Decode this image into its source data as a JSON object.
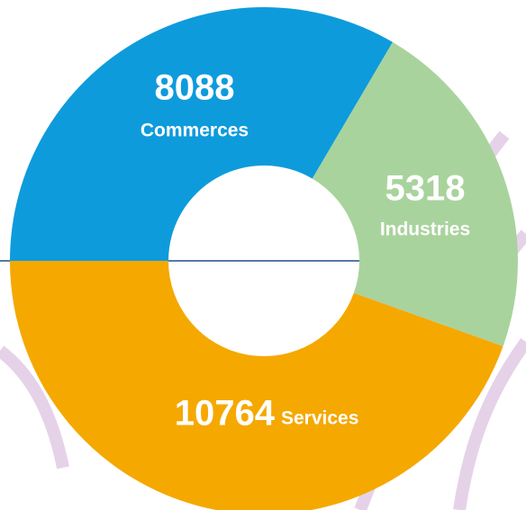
{
  "chart_data": {
    "type": "donut",
    "categories": [
      "Commerces",
      "Industries",
      "Services"
    ],
    "values": [
      8088,
      5318,
      10764
    ],
    "colors": [
      "#0e9bdc",
      "#a9d39d",
      "#f5a800"
    ]
  }
}
